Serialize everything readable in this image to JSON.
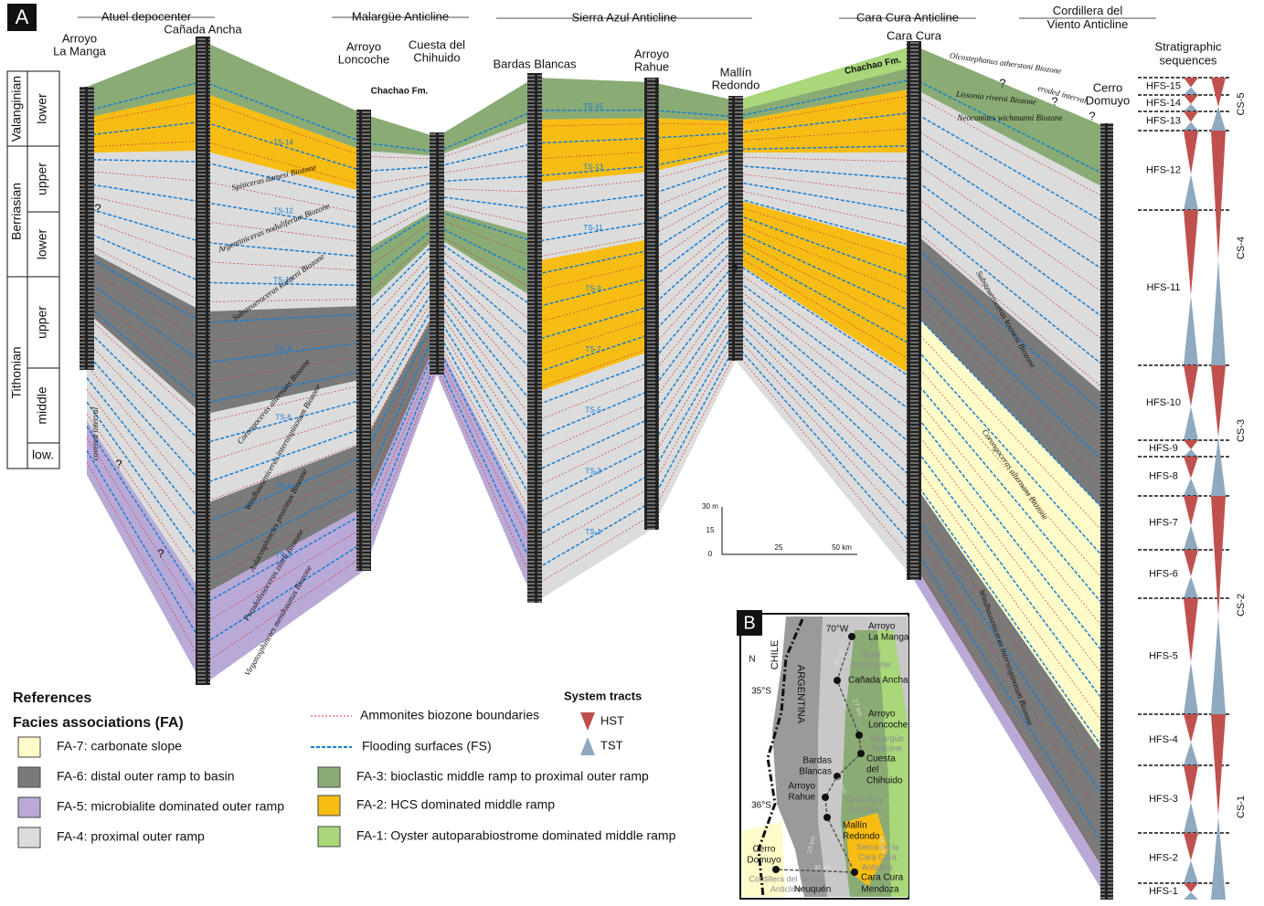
{
  "panel_a": {
    "label": "A",
    "anticlines": [
      "Atuel depocenter",
      "Malargüe Anticline",
      "Sierra Azul Anticline",
      "Cara Cura Anticline",
      "Cordillera del Viento Anticline"
    ],
    "sections": [
      [
        "Arroyo",
        "La Manga"
      ],
      [
        "Cañada Ancha"
      ],
      [
        "Arroyo",
        "Loncoche"
      ],
      [
        "Cuesta del",
        "Chihuido"
      ],
      [
        "Bardas Blancas"
      ],
      [
        "Arroyo",
        "Rahue"
      ],
      [
        "Mallín",
        "Redondo"
      ],
      [
        "Cara Cura"
      ],
      [
        "Cerro",
        "Domuyo"
      ]
    ],
    "stages": [
      "Valanginian",
      "Berriasian",
      "Tithonian"
    ],
    "substages": [
      "lower",
      "upper",
      "lower",
      "upper",
      "middle",
      "low."
    ],
    "biozones": [
      "Olcostephanus atherstoni Biozone",
      "Lissonia riveroi Biozone",
      "Neocomites wichmanni Biozone",
      "Spiticeras damesi Biozone",
      "Argentiniceras noduliferum Biozone",
      "Substeueroceras koeneni Biozone",
      "Corongoceras alternans Biozone",
      "Windhauseniceras internispinosum Biozone",
      "Aulacosphinctes proximus Biozone",
      "Pseudolissoceras zitteli Biozone",
      "Virgatosphinctes mendozanus Biozone"
    ],
    "flooding_surfaces": [
      "TS-1",
      "TS-2",
      "TS-3",
      "TS-4",
      "TS-5",
      "TS-6",
      "TS-7",
      "TS-8",
      "TS-9",
      "TS-10",
      "TS-11",
      "TS-12",
      "TS-13",
      "TS-14",
      "TS-15"
    ],
    "formation": "Chachao Fm.",
    "notes": [
      "covered interval",
      "eroded interval"
    ],
    "question": "?",
    "scale_bar": [
      "30 m",
      "15",
      "0",
      "25",
      "50 km"
    ],
    "sequences": {
      "title": [
        "Stratigraphic",
        "sequences"
      ],
      "hfs": [
        "HFS-15",
        "HFS-14",
        "HFS-13",
        "HFS-12",
        "HFS-11",
        "HFS-10",
        "HFS-9",
        "HFS-8",
        "HFS-7",
        "HFS-6",
        "HFS-5",
        "HFS-4",
        "HFS-3",
        "HFS-2",
        "HFS-1"
      ],
      "cs": [
        "CS-5",
        "CS-4",
        "CS-3",
        "CS-2",
        "CS-1"
      ]
    }
  },
  "legend": {
    "references": "References",
    "facies_title": "Facies associations (FA)",
    "facies": [
      {
        "label": "FA-7:  carbonate slope",
        "color": "#fffbc8"
      },
      {
        "label": "FA-6:  distal outer ramp to basin",
        "color": "#7a7a7a"
      },
      {
        "label": "FA-5:  microbialite dominated outer ramp",
        "color": "#b9a9d6"
      },
      {
        "label": "FA-4:  proximal outer ramp",
        "color": "#dcdcdc"
      },
      {
        "label": "FA-3:  bioclastic middle ramp to proximal outer ramp",
        "color": "#8aab74"
      },
      {
        "label": "FA-2:  HCS dominated middle ramp",
        "color": "#f7bd14"
      },
      {
        "label": "FA-1:  Oyster autoparabiostrome dominated middle ramp",
        "color": "#a9d77a"
      }
    ],
    "lines": [
      "Ammonites biozone boundaries",
      "Flooding surfaces (FS)"
    ],
    "system_tracts": {
      "title": "System tracts",
      "items": [
        "HST",
        "TST"
      ]
    }
  },
  "panel_b": {
    "label": "B",
    "labels": [
      "CHILE",
      "ARGENTINA",
      "70°W",
      "35°S",
      "36°S",
      "Neuquén",
      "Mendoza",
      "N"
    ],
    "sites": [
      [
        "Arroyo",
        "La Manga"
      ],
      [
        "Cañada Ancha"
      ],
      [
        "Arroyo",
        "Loncoche"
      ],
      [
        "Cuesta",
        "del",
        "Chihuido"
      ],
      [
        "Bardas",
        "Blancas"
      ],
      [
        "Arroyo",
        "Rahue"
      ],
      [
        "Mallín",
        "Redondo"
      ],
      [
        "Cara Cura"
      ],
      [
        "Cerro",
        "Domuyo"
      ]
    ],
    "regions": [
      [
        "Atuel",
        "depocenter"
      ],
      [
        "Malargüe",
        "Anticline"
      ],
      [
        "Sierra Azul",
        "Anticline"
      ],
      [
        "Sierra de la",
        "Cara Cura",
        "Anticline"
      ],
      [
        "Cordillera del Viento",
        "Anticline"
      ]
    ],
    "distances": [
      "36 km",
      "27 km",
      "17 km",
      "23 km",
      "48 km",
      "30 km"
    ]
  }
}
